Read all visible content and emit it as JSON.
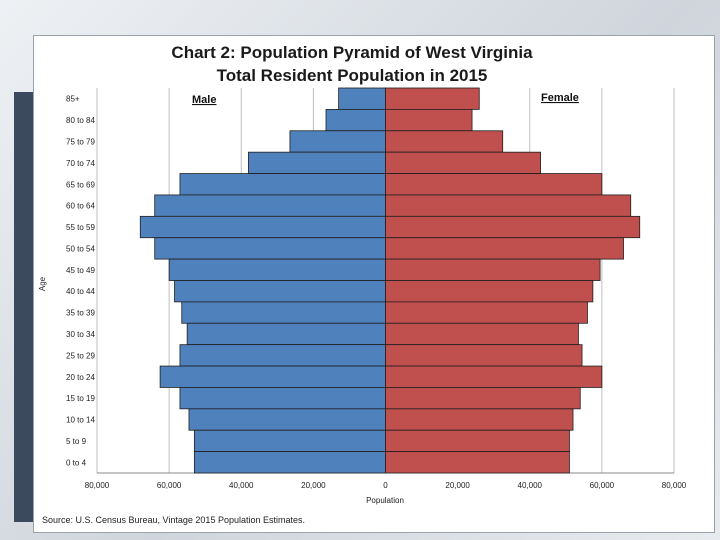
{
  "chart_data": {
    "type": "bar",
    "subtype": "population-pyramid",
    "title": "Chart 2: Population Pyramid of West Virginia",
    "subtitle": "Total Resident Population in 2015",
    "categories": [
      "85+",
      "80 to 84",
      "75 to 79",
      "70 to 74",
      "65 to 69",
      "60 to 64",
      "55 to 59",
      "50 to 54",
      "45 to 49",
      "40 to 44",
      "35 to 39",
      "30 to 34",
      "25 to 29",
      "20 to 24",
      "15 to 19",
      "10 to 14",
      "5 to 9",
      "0 to 4"
    ],
    "series": [
      {
        "name": "Male",
        "color": "#4f81bd",
        "values": [
          13000,
          16500,
          26500,
          38000,
          57000,
          64000,
          68000,
          64000,
          60000,
          58500,
          56500,
          55000,
          57000,
          62500,
          57000,
          54500,
          53000,
          53000
        ]
      },
      {
        "name": "Female",
        "color": "#c0504d",
        "values": [
          26000,
          24000,
          32500,
          43000,
          60000,
          68000,
          70500,
          66000,
          59500,
          57500,
          56000,
          53500,
          54500,
          60000,
          54000,
          52000,
          51000,
          51000
        ]
      }
    ],
    "xlim": [
      -80000,
      80000
    ],
    "xticks": [
      "80,000",
      "60,000",
      "40,000",
      "20,000",
      "0",
      "20,000",
      "40,000",
      "60,000",
      "80,000"
    ],
    "xlabel": "Population",
    "ylabel": "Age",
    "grid": true,
    "source": "Source: U.S. Census Bureau, Vintage 2015 Population Estimates."
  }
}
